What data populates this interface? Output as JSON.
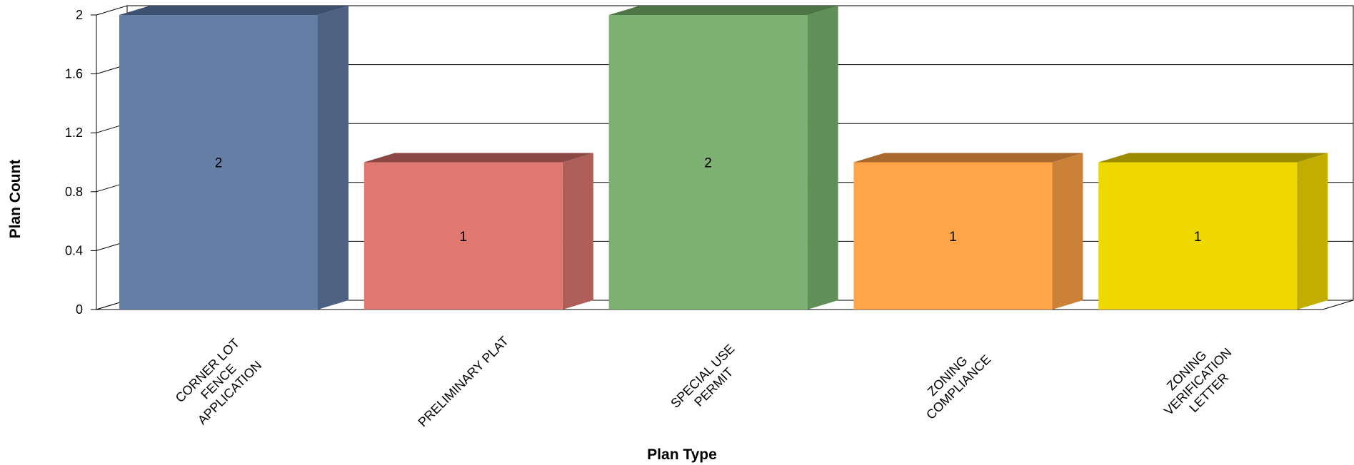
{
  "chart_data": {
    "type": "bar",
    "title": "",
    "xlabel": "Plan Type",
    "ylabel": "Plan Count",
    "ylim": [
      0,
      2
    ],
    "yticks": [
      "0",
      "0.4",
      "0.8",
      "1.2",
      "1.6",
      "2"
    ],
    "grid": true,
    "legend": "none",
    "style": "3d",
    "categories": [
      [
        "CORNER LOT",
        "FENCE",
        "APPLICATION"
      ],
      [
        "PRELIMINARY PLAT"
      ],
      [
        "SPECIAL USE",
        "PERMIT"
      ],
      [
        "ZONING",
        "COMPLIANCE"
      ],
      [
        "ZONING",
        "VERIFICATION",
        "LETTER"
      ]
    ],
    "values": [
      2,
      1,
      2,
      1,
      1
    ],
    "data_labels": [
      "2",
      "1",
      "2",
      "1",
      "1"
    ],
    "colors": [
      {
        "front": "#647ea5",
        "side": "#4d6282",
        "top": "#3d506d"
      },
      {
        "front": "#e07872",
        "side": "#b05e59",
        "top": "#8a4744"
      },
      {
        "front": "#7cb173",
        "side": "#608f58",
        "top": "#4d7546"
      },
      {
        "front": "#ffa548",
        "side": "#cc8139",
        "top": "#a8692e"
      },
      {
        "front": "#eed800",
        "side": "#c2ae00",
        "top": "#9a8b00"
      }
    ]
  }
}
